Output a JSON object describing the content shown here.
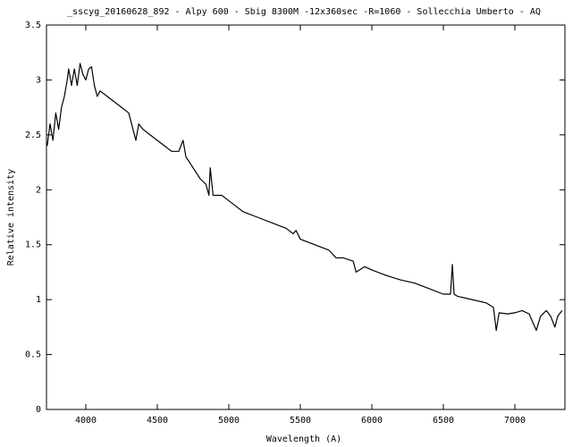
{
  "chart_data": {
    "type": "line",
    "title": "_sscyg_20160628_892 - Alpy 600 - Sbig 8300M -12x360sec -R=1060 - Sollecchia Umberto - AQ",
    "x_label": "Wavelength (A)",
    "y_label": "Relative intensity",
    "xlim": [
      3725,
      7350
    ],
    "ylim": [
      0,
      3.5
    ],
    "xticks": [
      4000,
      4500,
      5000,
      5500,
      6000,
      6500,
      7000
    ],
    "yticks": [
      0,
      0.5,
      1,
      1.5,
      2,
      2.5,
      3,
      3.5
    ],
    "grid": false,
    "series": [
      {
        "color": "#000000",
        "x": [
          3730,
          3750,
          3770,
          3790,
          3810,
          3830,
          3850,
          3870,
          3880,
          3900,
          3920,
          3940,
          3960,
          3980,
          4000,
          4020,
          4040,
          4060,
          4080,
          4100,
          4150,
          4200,
          4250,
          4300,
          4330,
          4350,
          4370,
          4400,
          4450,
          4500,
          4550,
          4600,
          4650,
          4680,
          4700,
          4750,
          4800,
          4840,
          4861,
          4870,
          4890,
          4950,
          5000,
          5050,
          5100,
          5200,
          5300,
          5400,
          5450,
          5470,
          5500,
          5600,
          5700,
          5750,
          5800,
          5870,
          5890,
          5950,
          6000,
          6100,
          6200,
          6300,
          6400,
          6500,
          6550,
          6563,
          6575,
          6600,
          6700,
          6800,
          6850,
          6870,
          6890,
          6950,
          7000,
          7050,
          7100,
          7150,
          7180,
          7220,
          7250,
          7280,
          7300,
          7330
        ],
        "values": [
          2.4,
          2.6,
          2.45,
          2.7,
          2.55,
          2.75,
          2.85,
          3.0,
          3.1,
          2.95,
          3.1,
          2.95,
          3.15,
          3.05,
          3.0,
          3.1,
          3.12,
          2.95,
          2.85,
          2.9,
          2.85,
          2.8,
          2.75,
          2.7,
          2.55,
          2.45,
          2.6,
          2.55,
          2.5,
          2.45,
          2.4,
          2.35,
          2.35,
          2.45,
          2.3,
          2.2,
          2.1,
          2.05,
          1.95,
          2.2,
          1.95,
          1.95,
          1.9,
          1.85,
          1.8,
          1.75,
          1.7,
          1.65,
          1.6,
          1.63,
          1.55,
          1.5,
          1.45,
          1.38,
          1.38,
          1.35,
          1.25,
          1.3,
          1.27,
          1.22,
          1.18,
          1.15,
          1.1,
          1.05,
          1.05,
          1.32,
          1.05,
          1.03,
          1.0,
          0.97,
          0.93,
          0.72,
          0.88,
          0.87,
          0.88,
          0.9,
          0.87,
          0.72,
          0.85,
          0.9,
          0.85,
          0.75,
          0.85,
          0.9
        ]
      }
    ]
  }
}
